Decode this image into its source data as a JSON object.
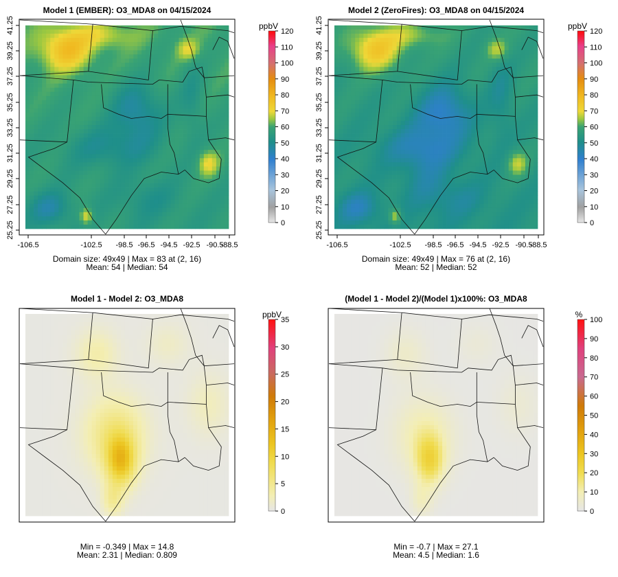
{
  "colors": {
    "diverge_abs": [
      "#e6e6e6",
      "#f2eaa0",
      "#f0dc50",
      "#e9c21c",
      "#e4ac10",
      "#d8960a",
      "#c96a05",
      "#d06a8e",
      "#e03c7a",
      "#ff1010"
    ],
    "abs_scale": [
      "#dcdcdc",
      "#9a9a9a",
      "#9ab8d6",
      "#2f7fcf",
      "#1f8f8a",
      "#3aa373",
      "#95c640",
      "#eed838",
      "#f0b820",
      "#e48c10",
      "#e06a80",
      "#e8408a",
      "#ff0a0a"
    ],
    "border": "#111111"
  },
  "chart_data": [
    {
      "type": "heatmap",
      "title": "Model 1 (EMBER): O3_MDA8 on 04/15/2024",
      "x_ticks": [
        "-106.5",
        "-102.5",
        "-98.5",
        "-96.5",
        "-94.5",
        "-92.5",
        "-90.5",
        "-88.5"
      ],
      "y_ticks": [
        "41.25",
        "39.25",
        "37.25",
        "35.25",
        "33.25",
        "31.25",
        "29.25",
        "27.25",
        "25.25"
      ],
      "colorbar": {
        "unit": "ppbV",
        "min": 0,
        "max": 120,
        "ticks": [
          "120",
          "110",
          "100",
          "90",
          "80",
          "70",
          "60",
          "50",
          "40",
          "30",
          "20",
          "10",
          "0"
        ]
      },
      "stats_line1": "Domain size: 49x49 | Max = 83 at (2, 16)",
      "stats_line2": "Mean: 54 |  Median: 54",
      "grid": [
        49,
        49
      ],
      "mean": 54,
      "median": 54,
      "max": 83
    },
    {
      "type": "heatmap",
      "title": "Model 2 (ZeroFires): O3_MDA8 on 04/15/2024",
      "x_ticks": [
        "-106.5",
        "-102.5",
        "-98.5",
        "-96.5",
        "-94.5",
        "-92.5",
        "-90.5",
        "-88.5"
      ],
      "y_ticks": [
        "41.25",
        "39.25",
        "37.25",
        "35.25",
        "33.25",
        "31.25",
        "29.25",
        "27.25",
        "25.25"
      ],
      "colorbar": {
        "unit": "ppbV",
        "min": 0,
        "max": 120,
        "ticks": [
          "120",
          "110",
          "100",
          "90",
          "80",
          "70",
          "60",
          "50",
          "40",
          "30",
          "20",
          "10",
          "0"
        ]
      },
      "stats_line1": "Domain size: 49x49 | Max = 76 at (2, 16)",
      "stats_line2": "Mean: 52 |  Median: 52",
      "grid": [
        49,
        49
      ],
      "mean": 52,
      "median": 52,
      "max": 76
    },
    {
      "type": "heatmap",
      "title": "Model 1 - Model 2: O3_MDA8",
      "colorbar": {
        "unit": "ppbV",
        "min": 0,
        "max": 35,
        "ticks": [
          "35",
          "30",
          "25",
          "20",
          "15",
          "10",
          "5",
          "0"
        ]
      },
      "stats_line1": "Min = -0.349 | Max = 14.8",
      "stats_line2": "Mean: 2.31 |  Median: 0.809",
      "min": -0.349,
      "max": 14.8,
      "mean": 2.31,
      "median": 0.809
    },
    {
      "type": "heatmap",
      "title": "(Model 1 - Model 2)/(Model 1)x100%: O3_MDA8",
      "colorbar": {
        "unit": "%",
        "min": 0,
        "max": 100,
        "ticks": [
          "100",
          "90",
          "80",
          "70",
          "60",
          "50",
          "40",
          "30",
          "20",
          "10",
          "0"
        ]
      },
      "stats_line1": "Min = -0.7 | Max = 27.1",
      "stats_line2": "Mean: 4.5 |  Median: 1.6",
      "min": -0.7,
      "max": 27.1,
      "mean": 4.5,
      "median": 1.6
    }
  ]
}
